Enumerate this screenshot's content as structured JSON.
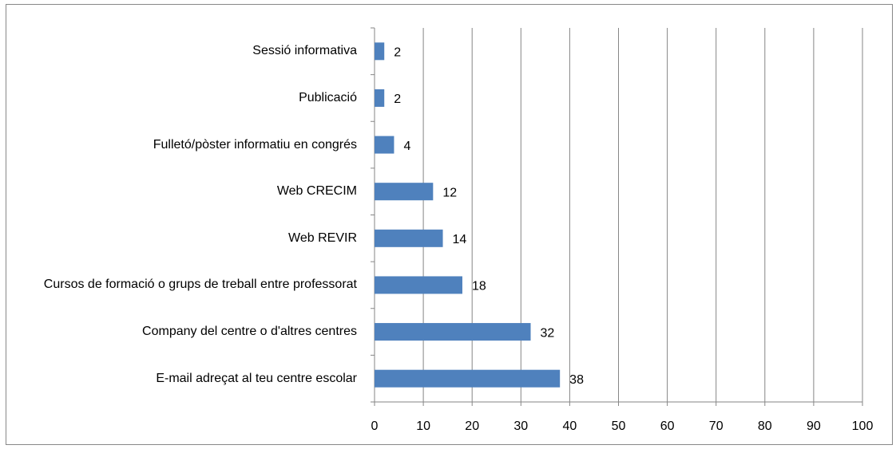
{
  "chart_data": {
    "type": "bar",
    "orientation": "horizontal",
    "categories": [
      "Sessió informativa",
      "Publicació",
      "Fulletó/pòster informatiu en congrés",
      "Web CRECIM",
      "Web REVIR",
      "Cursos de formació o grups de treball entre professorat",
      "Company del centre o d'altres centres",
      "E-mail adreçat al teu centre escolar"
    ],
    "values": [
      2,
      2,
      4,
      12,
      14,
      18,
      32,
      38
    ],
    "color": "#4f81bd",
    "xlim": [
      0,
      100
    ],
    "xticks": [
      0,
      10,
      20,
      30,
      40,
      50,
      60,
      70,
      80,
      90,
      100
    ],
    "grid": true
  }
}
